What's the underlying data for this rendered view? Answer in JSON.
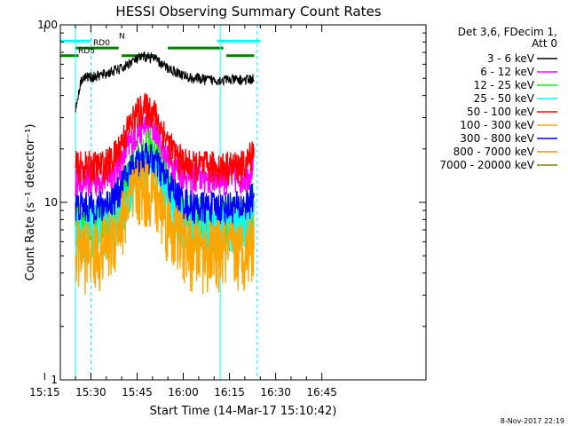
{
  "chart_data": {
    "type": "line",
    "title": "HESSI Observing Summary Count Rates",
    "xlabel": "Start Time (14-Mar-17 15:10:42)",
    "ylabel": "Count Rate (s⁻¹ detector⁻¹)",
    "y_scale": "log",
    "ylim": [
      1,
      100
    ],
    "x_ticks": [
      "15:15",
      "15:30",
      "15:45",
      "16:00",
      "16:15",
      "16:30",
      "16:45"
    ],
    "y_ticks": [
      "1",
      "10",
      "100"
    ],
    "legend_header": [
      "Det 3,6, FDecim 1,",
      "Att 0"
    ],
    "legend_placement": "right",
    "timestamp": "8-Nov-2017 22:19",
    "x_minutes": [
      -2.0,
      0.0,
      2.0,
      4.0,
      6.0,
      8.0,
      10.0,
      12.0,
      14.0,
      16.0,
      18.0,
      20.0,
      22.0,
      24.0,
      26.0,
      28.0,
      30.0,
      32.0,
      34.0,
      36.0,
      38.0,
      40.0,
      42.0,
      44.0,
      46.0,
      48.0,
      50.0,
      52.0,
      54.0,
      56.0
    ],
    "series": [
      {
        "name": "3 - 6 keV",
        "color": "#000000",
        "values": [
          33,
          50,
          51,
          51,
          52,
          53,
          55,
          56,
          58,
          62,
          64,
          66,
          66,
          64,
          60,
          57,
          55,
          53,
          51,
          50,
          50,
          49,
          49,
          49,
          49,
          49,
          49,
          49,
          49,
          50
        ]
      },
      {
        "name": "6 - 12 keV",
        "color": "#ff00ff",
        "values": [
          13,
          13.5,
          13.5,
          13.5,
          13.5,
          14,
          14.5,
          16,
          19,
          22,
          25,
          27,
          27,
          25,
          21,
          18,
          16,
          15,
          14.5,
          14,
          14,
          14,
          14,
          14,
          14,
          14,
          14,
          14,
          14.5,
          17
        ]
      },
      {
        "name": "12 - 25 keV",
        "color": "#00ff00",
        "values": [
          7.5,
          7.5,
          7.5,
          7.5,
          7.5,
          8,
          8.5,
          9.5,
          11.5,
          14,
          17,
          19,
          20,
          18,
          15,
          12,
          10,
          9,
          8.5,
          8,
          8,
          8,
          8,
          8,
          8,
          8,
          8,
          8,
          8.5,
          10
        ]
      },
      {
        "name": "25 - 50 keV",
        "color": "#00ffff",
        "values": [
          7,
          7,
          7,
          7,
          7,
          7.5,
          8,
          9,
          10.5,
          12.5,
          14.5,
          16,
          16,
          15,
          13,
          11,
          9.5,
          8.5,
          8,
          7.5,
          7.5,
          7.5,
          7.5,
          7.5,
          7.5,
          7.5,
          7.5,
          7.5,
          8,
          9
        ]
      },
      {
        "name": "50 - 100 keV",
        "color": "#ff0000",
        "values": [
          16,
          16,
          16,
          16,
          16,
          16.5,
          17.5,
          20,
          24,
          28,
          32,
          34,
          34,
          31,
          26,
          22,
          19,
          17.5,
          16.5,
          16,
          16,
          16,
          16,
          16,
          16,
          16,
          16,
          16,
          17,
          21
        ]
      },
      {
        "name": "100 - 300 keV",
        "color": "#ffa500",
        "values": [
          5.5,
          5.5,
          5.5,
          5.5,
          5.5,
          6,
          6.5,
          7.5,
          9,
          10.5,
          12,
          12.5,
          12,
          11,
          9.5,
          8,
          7,
          6.5,
          6,
          5.5,
          5.5,
          5.5,
          5.5,
          5.5,
          5.5,
          5.5,
          5.5,
          5.5,
          6,
          6.5
        ]
      },
      {
        "name": "300 - 800 keV",
        "color": "#0000ff",
        "values": [
          9.5,
          9.5,
          9.5,
          9.5,
          9.5,
          10,
          10.5,
          11.5,
          13.5,
          15.5,
          17,
          18,
          18,
          17,
          15,
          13,
          11.5,
          10.5,
          10,
          9.5,
          9.5,
          9.5,
          9.5,
          9.5,
          9.5,
          9.5,
          9.5,
          9.5,
          10,
          11
        ]
      },
      {
        "name": "800 - 7000 keV",
        "color": "#ff8c00",
        "values": []
      },
      {
        "name": "7000 - 20000 keV",
        "color": "#808000",
        "values": []
      }
    ],
    "attenuator_bars": [
      {
        "label": "RD0",
        "color": "#008000",
        "y": 74,
        "start": -2.0,
        "end": 12.0
      },
      {
        "label": "",
        "color": "#008000",
        "y": 74,
        "start": 28.0,
        "end": 46.0
      },
      {
        "label": "RD6",
        "color": "#008000",
        "y": 67,
        "start": -9.0,
        "end": -1.0
      },
      {
        "label": "",
        "color": "#008000",
        "y": 67,
        "start": 13.0,
        "end": 24.0
      },
      {
        "label": "",
        "color": "#008000",
        "y": 67,
        "start": 47.0,
        "end": 56.0
      },
      {
        "label": "N",
        "color": "#00ffff",
        "y": 81,
        "start": -9.0,
        "end": 3.0
      },
      {
        "label": "",
        "color": "#00ffff",
        "y": 81,
        "start": 44.0,
        "end": 58.0
      }
    ],
    "event_lines": [
      {
        "time": -2.0,
        "color": "#00ffff",
        "style": "solid"
      },
      {
        "time": 3.0,
        "color": "#00ffff",
        "style": "dashed"
      },
      {
        "time": 45.0,
        "color": "#00ffff",
        "style": "solid"
      },
      {
        "time": 57.0,
        "color": "#00ffff",
        "style": "dashed"
      }
    ]
  }
}
